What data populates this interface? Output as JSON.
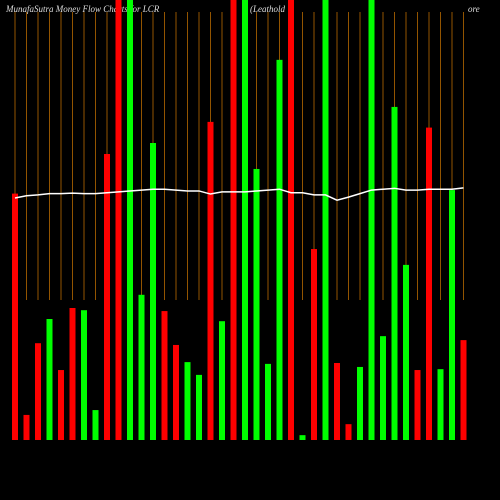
{
  "chart_data": {
    "type": "bar",
    "title": "MunafaSutra  Money Flow  Charts for LCR",
    "subtitle": "(Leathold",
    "corner_note": "ore",
    "ylim": [
      0,
      100
    ],
    "values": [
      56,
      5.7,
      22,
      27.5,
      15.9,
      30,
      29.5,
      6.8,
      65,
      100,
      100,
      33,
      67.5,
      29.3,
      21.6,
      17.7,
      14.8,
      72.3,
      27,
      100,
      100,
      61.6,
      17.3,
      86.4,
      100,
      1.1,
      43.4,
      100,
      17.5,
      3.6,
      16.6,
      100,
      23.6,
      75.7,
      39.8,
      15.9,
      71,
      16.1,
      56.8,
      22.7
    ],
    "colors": [
      "#ff0000",
      "#ff0000",
      "#ff0000",
      "#00ff00",
      "#ff0000",
      "#ff0000",
      "#00ff00",
      "#00ff00",
      "#ff0000",
      "#ff0000",
      "#00ff00",
      "#00ff00",
      "#00ff00",
      "#ff0000",
      "#ff0000",
      "#00ff00",
      "#00ff00",
      "#ff0000",
      "#00ff00",
      "#ff0000",
      "#00ff00",
      "#00ff00",
      "#00ff00",
      "#00ff00",
      "#ff0000",
      "#00ff00",
      "#ff0000",
      "#00ff00",
      "#ff0000",
      "#ff0000",
      "#00ff00",
      "#00ff00",
      "#00ff00",
      "#00ff00",
      "#00ff00",
      "#ff0000",
      "#ff0000",
      "#00ff00",
      "#00ff00",
      "#ff0000"
    ],
    "line": {
      "color": "#ffffff",
      "values": [
        55,
        55.5,
        55.7,
        56,
        56,
        56.1,
        56,
        56,
        56.2,
        56.4,
        56.6,
        56.8,
        57,
        57,
        56.8,
        56.6,
        56.6,
        55.9,
        56.4,
        56.4,
        56.4,
        56.6,
        56.8,
        57,
        56.2,
        56.2,
        55.7,
        55.7,
        54.5,
        55.2,
        56,
        56.8,
        57,
        57.2,
        56.8,
        56.8,
        57,
        57,
        57,
        57.3
      ]
    }
  }
}
